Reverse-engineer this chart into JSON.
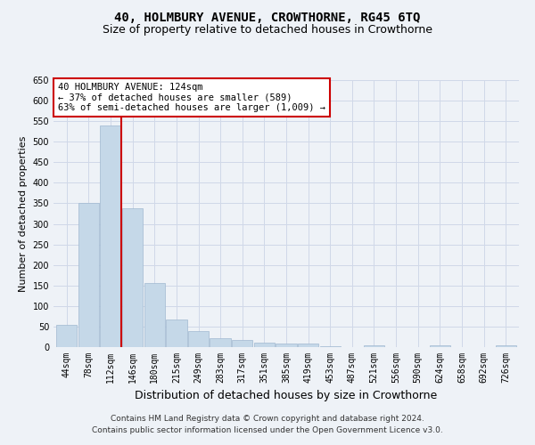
{
  "title": "40, HOLMBURY AVENUE, CROWTHORNE, RG45 6TQ",
  "subtitle": "Size of property relative to detached houses in Crowthorne",
  "xlabel": "Distribution of detached houses by size in Crowthorne",
  "ylabel": "Number of detached properties",
  "categories": [
    "44sqm",
    "78sqm",
    "112sqm",
    "146sqm",
    "180sqm",
    "215sqm",
    "249sqm",
    "283sqm",
    "317sqm",
    "351sqm",
    "385sqm",
    "419sqm",
    "453sqm",
    "487sqm",
    "521sqm",
    "556sqm",
    "590sqm",
    "624sqm",
    "658sqm",
    "692sqm",
    "726sqm"
  ],
  "values": [
    55,
    352,
    540,
    337,
    155,
    68,
    40,
    22,
    18,
    10,
    8,
    8,
    3,
    0,
    4,
    0,
    0,
    4,
    0,
    0,
    4
  ],
  "bar_color": "#c5d8e8",
  "bar_edge_color": "#a0b8d0",
  "grid_color": "#d0d8e8",
  "annotation_line1": "40 HOLMBURY AVENUE: 124sqm",
  "annotation_line2": "← 37% of detached houses are smaller (589)",
  "annotation_line3": "63% of semi-detached houses are larger (1,009) →",
  "annotation_box_color": "#ffffff",
  "annotation_box_edge_color": "#cc0000",
  "red_line_x": 2.5,
  "red_line_color": "#cc0000",
  "ylim": [
    0,
    650
  ],
  "yticks": [
    0,
    50,
    100,
    150,
    200,
    250,
    300,
    350,
    400,
    450,
    500,
    550,
    600,
    650
  ],
  "footer_line1": "Contains HM Land Registry data © Crown copyright and database right 2024.",
  "footer_line2": "Contains public sector information licensed under the Open Government Licence v3.0.",
  "title_fontsize": 10,
  "subtitle_fontsize": 9,
  "xlabel_fontsize": 9,
  "ylabel_fontsize": 8,
  "tick_fontsize": 7,
  "annotation_fontsize": 7.5,
  "footer_fontsize": 6.5,
  "background_color": "#eef2f7"
}
